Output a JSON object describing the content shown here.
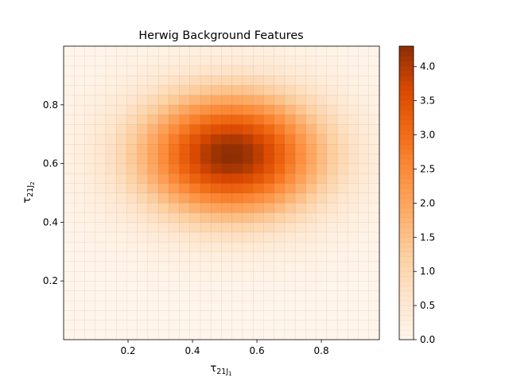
{
  "chart_data": {
    "type": "heatmap",
    "title": "Herwig Background Features",
    "xlabel_main": "τ",
    "xlabel_sub": "21J",
    "xlabel_subsub": "1",
    "ylabel_main": "τ",
    "ylabel_sub": "21J",
    "ylabel_subsub": "2",
    "xlim": [
      0.0,
      0.98
    ],
    "ylim": [
      0.0,
      1.0
    ],
    "x_ticks": [
      0.2,
      0.4,
      0.6,
      0.8
    ],
    "x_tick_labels": [
      "0.2",
      "0.4",
      "0.6",
      "0.8"
    ],
    "y_ticks": [
      0.2,
      0.4,
      0.6,
      0.8
    ],
    "y_tick_labels": [
      "0.2",
      "0.4",
      "0.6",
      "0.8"
    ],
    "grid": false,
    "colormap": "Oranges",
    "colormap_stops": [
      "#fff5eb",
      "#fee6ce",
      "#fdd0a2",
      "#fdae6b",
      "#fd8d3c",
      "#f16913",
      "#d94801",
      "#8c2d04"
    ],
    "bins": 30,
    "density_model": {
      "peak_density": 4.3,
      "peak_x": 0.52,
      "peak_y": 0.63,
      "sigma_x": 0.2,
      "sigma_y": 0.15
    },
    "colorbar": {
      "range": [
        0.0,
        4.3
      ],
      "ticks": [
        0.0,
        0.5,
        1.0,
        1.5,
        2.0,
        2.5,
        3.0,
        3.5,
        4.0
      ],
      "tick_labels": [
        "0.0",
        "0.5",
        "1.0",
        "1.5",
        "2.0",
        "2.5",
        "3.0",
        "3.5",
        "4.0"
      ]
    }
  }
}
